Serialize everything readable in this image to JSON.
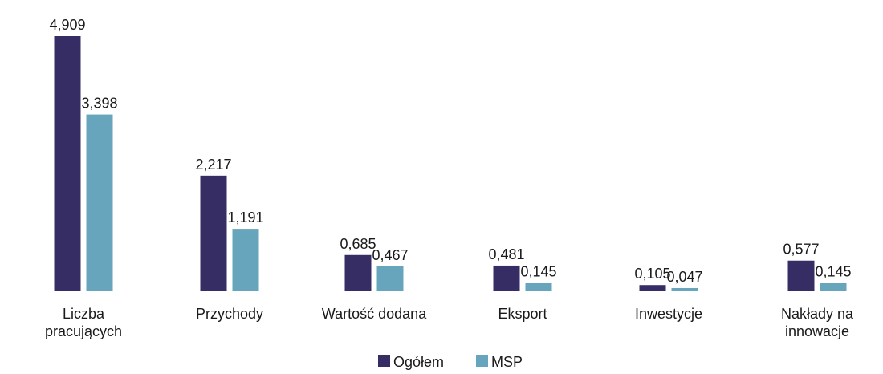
{
  "chart_data": {
    "type": "bar",
    "categories": [
      [
        "Liczba",
        "pracujących"
      ],
      [
        "Przychody"
      ],
      [
        "Wartość dodana"
      ],
      [
        "Eksport"
      ],
      [
        "Inwestycje"
      ],
      [
        "Nakłady na",
        "innowacje"
      ]
    ],
    "series": [
      {
        "name": "Ogółem",
        "color": "#352d63",
        "values": [
          4.909,
          2.217,
          0.685,
          0.481,
          0.105,
          0.577
        ],
        "labels": [
          "4,909",
          "2,217",
          "0,685",
          "0,481",
          "0,105",
          "0,577"
        ]
      },
      {
        "name": "MSP",
        "color": "#67a5bd",
        "values": [
          3.398,
          1.191,
          0.467,
          0.145,
          0.047,
          0.145
        ],
        "labels": [
          "3,398",
          "1,191",
          "0,467",
          "0,145",
          "0,047",
          "0,145"
        ]
      }
    ],
    "ylim": [
      0,
      4.909
    ],
    "grid": false,
    "legend": "bottom-center",
    "title": "",
    "xlabel": "",
    "ylabel": ""
  }
}
